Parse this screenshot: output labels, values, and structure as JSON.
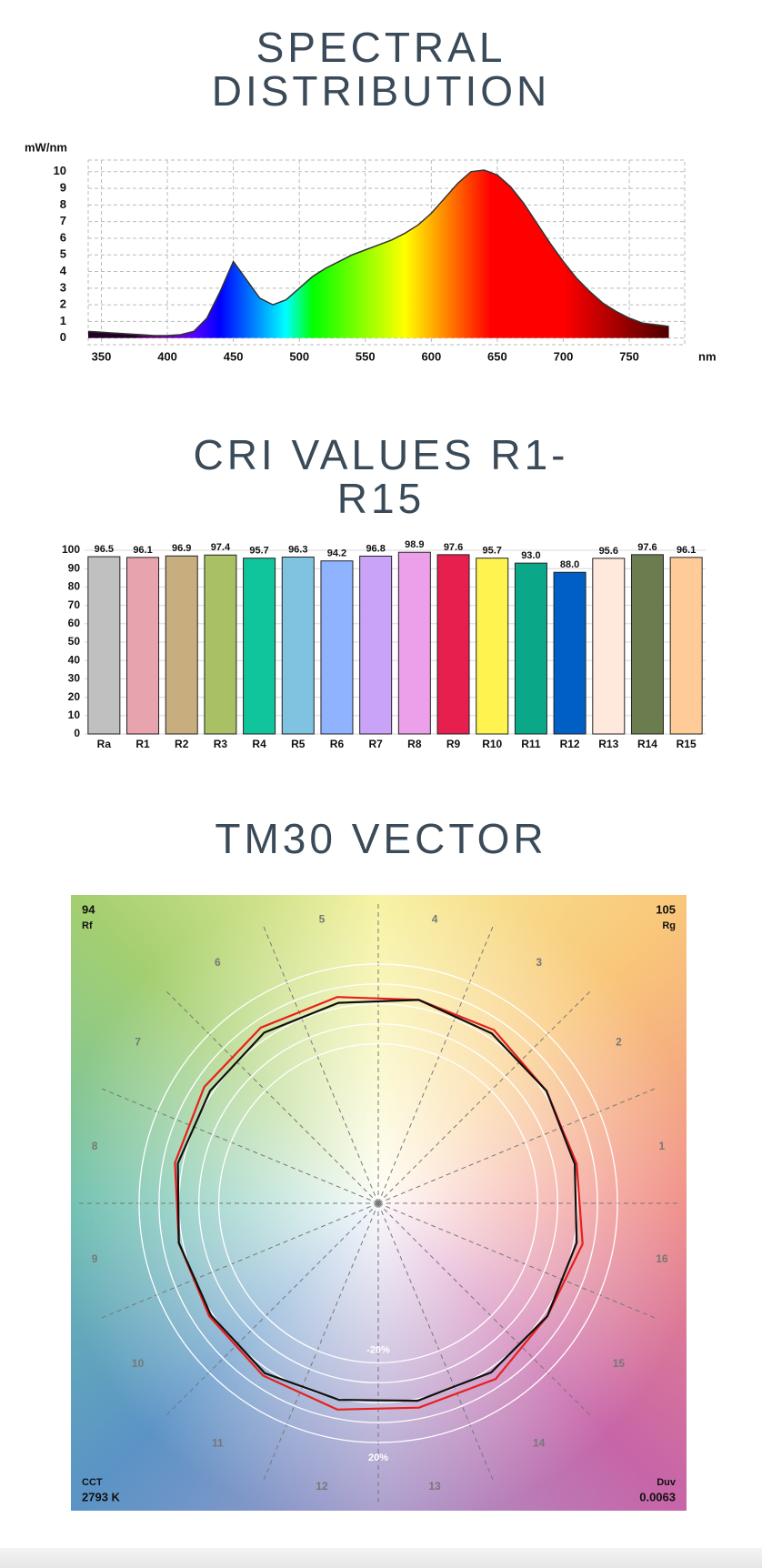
{
  "chart_data": [
    {
      "type": "area",
      "title": "SPECTRAL DISTRIBUTION",
      "ylabel": "mW/nm",
      "xlabel": "nm",
      "x": [
        340,
        350,
        360,
        370,
        380,
        390,
        400,
        410,
        420,
        430,
        440,
        450,
        460,
        470,
        480,
        490,
        500,
        510,
        520,
        530,
        540,
        550,
        560,
        570,
        580,
        590,
        600,
        610,
        620,
        630,
        640,
        650,
        660,
        670,
        680,
        690,
        700,
        710,
        720,
        730,
        740,
        750,
        760,
        770,
        780
      ],
      "values": [
        0.4,
        0.35,
        0.3,
        0.25,
        0.2,
        0.15,
        0.15,
        0.2,
        0.4,
        1.2,
        2.8,
        4.6,
        3.5,
        2.4,
        2.0,
        2.3,
        3.0,
        3.7,
        4.2,
        4.6,
        5.0,
        5.3,
        5.6,
        5.9,
        6.3,
        6.8,
        7.5,
        8.4,
        9.3,
        10.0,
        10.1,
        9.8,
        9.1,
        8.1,
        6.9,
        5.7,
        4.6,
        3.6,
        2.8,
        2.1,
        1.6,
        1.2,
        0.9,
        0.8,
        0.7
      ],
      "color": "#333333",
      "xlim": [
        340,
        792
      ],
      "ylim": [
        -0.4,
        10.7
      ],
      "xticks": [
        350,
        400,
        450,
        500,
        550,
        600,
        650,
        700,
        750
      ],
      "yticks": [
        0,
        1,
        2,
        3,
        4,
        5,
        6,
        7,
        8,
        9,
        10
      ],
      "grid": true
    },
    {
      "type": "bar",
      "title": "CRI VALUES R1-R15",
      "categories": [
        "Ra",
        "R1",
        "R2",
        "R3",
        "R4",
        "R5",
        "R6",
        "R7",
        "R8",
        "R9",
        "R10",
        "R11",
        "R12",
        "R13",
        "R14",
        "R15"
      ],
      "values": [
        96.5,
        96.1,
        96.9,
        97.4,
        95.7,
        96.3,
        94.2,
        96.8,
        98.9,
        97.6,
        95.7,
        93.0,
        88.0,
        95.6,
        97.6,
        96.1
      ],
      "value_labels": [
        "96.5",
        "96.1",
        "96.9",
        "97.4",
        "95.7",
        "96.3",
        "94.2",
        "96.8",
        "98.9",
        "97.6",
        "95.7",
        "93.0",
        "88.0",
        "95.6",
        "97.6",
        "96.1"
      ],
      "colors": [
        "#c0c0c0",
        "#e8a4ae",
        "#c8ad7f",
        "#a9c164",
        "#10c49c",
        "#7fc3e0",
        "#8fb3ff",
        "#c9a3f7",
        "#eca0ea",
        "#e61f4e",
        "#fff44f",
        "#0aa889",
        "#005fc4",
        "#ffe8dc",
        "#6b7d4e",
        "#ffcc99"
      ],
      "ylim": [
        0,
        100
      ],
      "yticks": [
        0,
        10,
        20,
        30,
        40,
        50,
        60,
        70,
        80,
        90,
        100
      ],
      "grid": true
    },
    {
      "type": "radar",
      "title": "TM30 VECTOR",
      "categories": [
        "1",
        "2",
        "3",
        "4",
        "5",
        "6",
        "7",
        "8",
        "9",
        "10",
        "11",
        "12",
        "13",
        "14",
        "15",
        "16"
      ],
      "series": [
        {
          "color": "#e8201c",
          "values": [
            1.5,
            1.5,
            4.5,
            4,
            5.5,
            6,
            5,
            4,
            2,
            2,
            4,
            5.5,
            4.5,
            6,
            2,
            4.5
          ]
        },
        {
          "color": "#111111",
          "values": [
            0.5,
            1.5,
            2.5,
            4,
            2.5,
            3,
            1.5,
            2.5,
            2,
            1,
            2.5,
            0.5,
            1,
            2,
            2,
            1.5
          ]
        }
      ],
      "rlim": [
        -100,
        25
      ],
      "rgrid": [
        -20,
        -10,
        0,
        10,
        20
      ],
      "rticks": [
        {
          "value": -20,
          "label": "-20%"
        },
        {
          "value": 20,
          "label": "20%"
        }
      ],
      "annotations": [
        {
          "label": "Rf",
          "value": 94,
          "corner": "top-left"
        },
        {
          "label": "Rg",
          "value": 105,
          "corner": "top-right"
        },
        {
          "label": "CCT",
          "value": "2793 K",
          "corner": "bottom-left"
        },
        {
          "label": "Duv",
          "value": 0.0063,
          "corner": "bottom-right"
        }
      ]
    }
  ]
}
